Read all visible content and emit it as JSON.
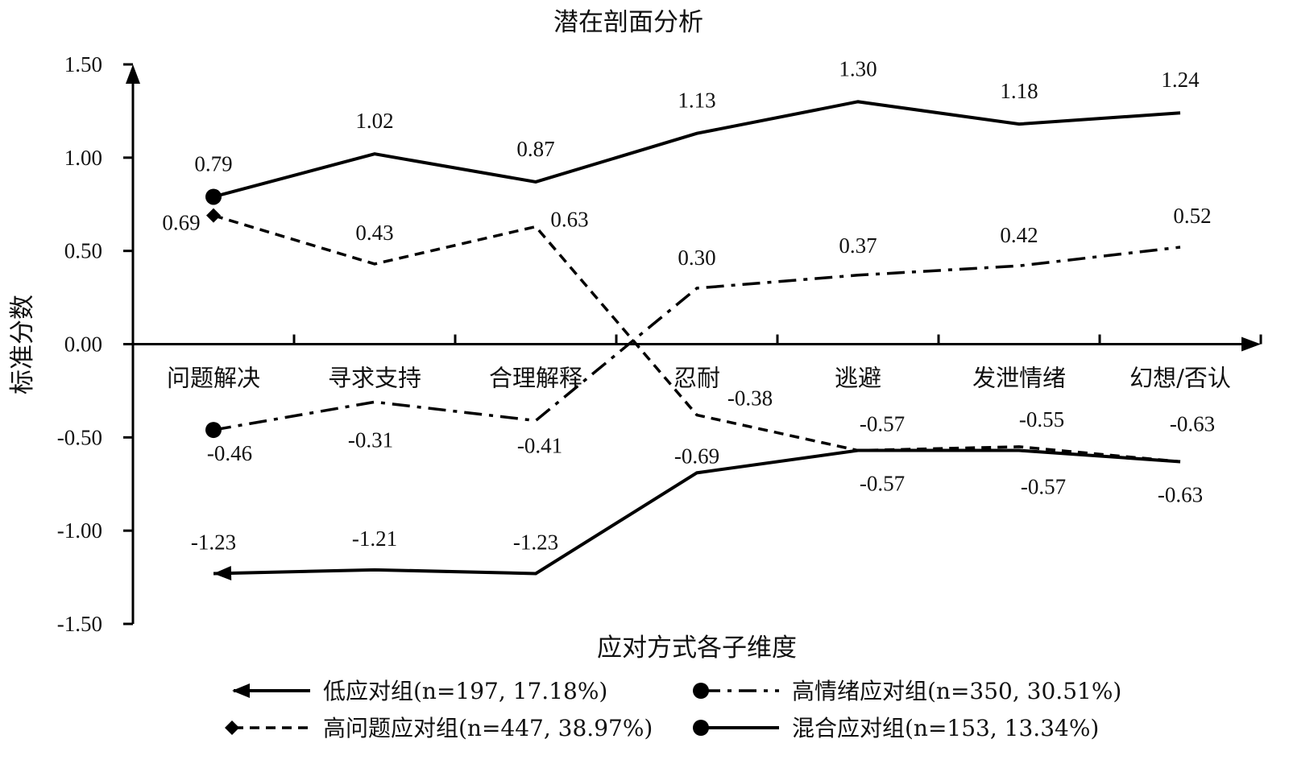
{
  "chart_data": {
    "type": "line",
    "title": "潜在剖面分析",
    "xlabel": "应对方式各子维度",
    "ylabel": "标准分数",
    "ylim": [
      -1.5,
      1.5
    ],
    "yticks": [
      "1.50",
      "1.00",
      "0.50",
      "0.00",
      "-0.50",
      "-1.00",
      "-1.50"
    ],
    "categories": [
      "问题解决",
      "寻求支持",
      "合理解释",
      "忍耐",
      "逃避",
      "发泄情绪",
      "幻想/否认"
    ],
    "legend_position": "bottom",
    "grid": false,
    "series": [
      {
        "name": "低应对组(n=197, 17.18%)",
        "style": "solid",
        "marker": "arrow",
        "color": "#000000",
        "values": [
          -1.23,
          -1.21,
          -1.23,
          -0.69,
          -0.57,
          -0.57,
          -0.63
        ],
        "labels": [
          "-1.23",
          "-1.21",
          "-1.23",
          "-0.69",
          "-0.57",
          "-0.57",
          "-0.63"
        ]
      },
      {
        "name": "高情绪应对组(n=350, 30.51%)",
        "style": "dashdot",
        "marker": "circle",
        "color": "#000000",
        "values": [
          -0.46,
          -0.31,
          -0.41,
          0.3,
          0.37,
          0.42,
          0.52
        ],
        "labels": [
          "-0.46",
          "-0.31",
          "-0.41",
          "0.30",
          "0.37",
          "0.42",
          "0.52"
        ]
      },
      {
        "name": "高问题应对组(n=447, 38.97%)",
        "style": "dashed",
        "marker": "diamond",
        "color": "#000000",
        "values": [
          0.69,
          0.43,
          0.63,
          -0.38,
          -0.57,
          -0.55,
          -0.63
        ],
        "labels": [
          "0.69",
          "0.43",
          "0.63",
          "-0.38",
          "-0.57",
          "-0.55",
          "-0.63"
        ]
      },
      {
        "name": "混合应对组(n=153, 13.34%)",
        "style": "solid",
        "marker": "circle",
        "color": "#000000",
        "values": [
          0.79,
          1.02,
          0.87,
          1.13,
          1.3,
          1.18,
          1.24
        ],
        "labels": [
          "0.79",
          "1.02",
          "0.87",
          "1.13",
          "1.30",
          "1.18",
          "1.24"
        ]
      }
    ]
  }
}
